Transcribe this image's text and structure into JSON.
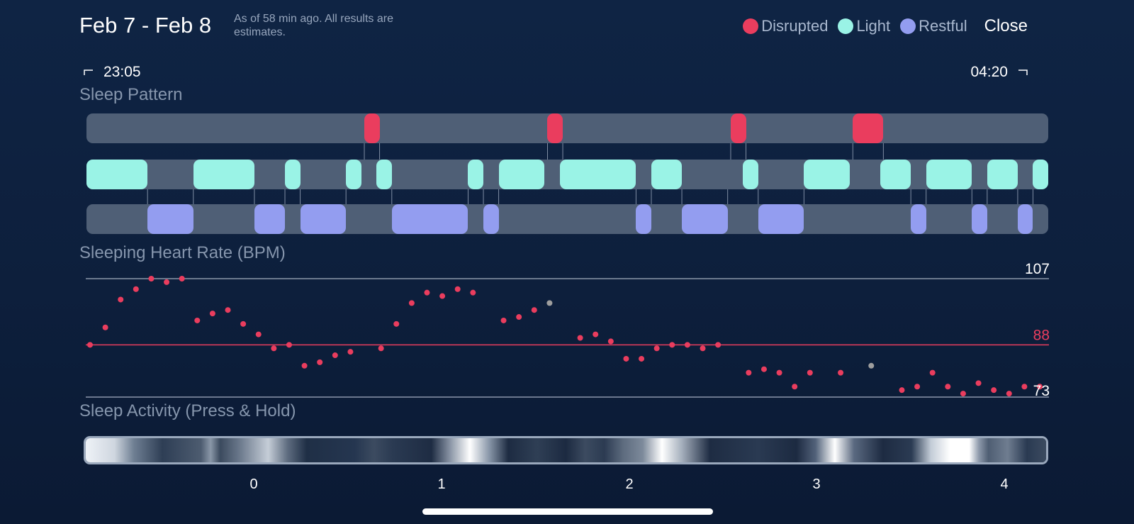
{
  "header": {
    "title": "Feb 7 - Feb 8",
    "subtitle": "As of 58 min ago. All results are estimates.",
    "close_label": "Close"
  },
  "legend": [
    {
      "label": "Disrupted",
      "color": "#ea3d5e"
    },
    {
      "label": "Light",
      "color": "#9af3e6"
    },
    {
      "label": "Restful",
      "color": "#939df0"
    }
  ],
  "time_range": {
    "start": "23:05",
    "end": "04:20"
  },
  "sleep_pattern": {
    "label": "Sleep Pattern",
    "total_minutes": 315,
    "disrupted": [
      [
        91,
        96
      ],
      [
        151,
        156
      ],
      [
        211,
        216
      ],
      [
        251,
        261
      ]
    ],
    "light": [
      [
        0,
        20
      ],
      [
        35,
        55
      ],
      [
        65,
        70
      ],
      [
        85,
        90
      ],
      [
        95,
        100
      ],
      [
        125,
        130
      ],
      [
        135,
        150
      ],
      [
        155,
        180
      ],
      [
        185,
        195
      ],
      [
        215,
        220
      ],
      [
        235,
        250
      ],
      [
        260,
        270
      ],
      [
        275,
        290
      ],
      [
        295,
        305
      ],
      [
        310,
        315
      ]
    ],
    "restful": [
      [
        20,
        35
      ],
      [
        55,
        65
      ],
      [
        70,
        85
      ],
      [
        100,
        125
      ],
      [
        130,
        135
      ],
      [
        180,
        185
      ],
      [
        195,
        210
      ],
      [
        220,
        235
      ],
      [
        270,
        275
      ],
      [
        290,
        295
      ],
      [
        305,
        310
      ]
    ]
  },
  "heart_rate": {
    "label": "Sleeping Heart Rate (BPM)",
    "max": 107,
    "avg": 88,
    "min": 73,
    "red_color": "#ea3d5e",
    "gray_color": "#9e9e9e",
    "points": [
      {
        "t": 0,
        "v": 88
      },
      {
        "t": 5,
        "v": 93
      },
      {
        "t": 10,
        "v": 101
      },
      {
        "t": 15,
        "v": 104
      },
      {
        "t": 20,
        "v": 107
      },
      {
        "t": 25,
        "v": 106
      },
      {
        "t": 30,
        "v": 107
      },
      {
        "t": 35,
        "v": 95
      },
      {
        "t": 40,
        "v": 97
      },
      {
        "t": 45,
        "v": 98
      },
      {
        "t": 50,
        "v": 94
      },
      {
        "t": 55,
        "v": 91
      },
      {
        "t": 60,
        "v": 87
      },
      {
        "t": 65,
        "v": 88
      },
      {
        "t": 70,
        "v": 82
      },
      {
        "t": 75,
        "v": 83
      },
      {
        "t": 80,
        "v": 85
      },
      {
        "t": 85,
        "v": 86
      },
      {
        "t": 95,
        "v": 87
      },
      {
        "t": 100,
        "v": 94
      },
      {
        "t": 105,
        "v": 100
      },
      {
        "t": 110,
        "v": 103
      },
      {
        "t": 115,
        "v": 102
      },
      {
        "t": 120,
        "v": 104
      },
      {
        "t": 125,
        "v": 103
      },
      {
        "t": 135,
        "v": 95
      },
      {
        "t": 140,
        "v": 96
      },
      {
        "t": 145,
        "v": 98
      },
      {
        "t": 150,
        "v": 100,
        "gray": true
      },
      {
        "t": 160,
        "v": 90
      },
      {
        "t": 165,
        "v": 91
      },
      {
        "t": 170,
        "v": 89
      },
      {
        "t": 175,
        "v": 84
      },
      {
        "t": 180,
        "v": 84
      },
      {
        "t": 185,
        "v": 87
      },
      {
        "t": 190,
        "v": 88
      },
      {
        "t": 195,
        "v": 88
      },
      {
        "t": 200,
        "v": 87
      },
      {
        "t": 205,
        "v": 88
      },
      {
        "t": 215,
        "v": 80
      },
      {
        "t": 220,
        "v": 81
      },
      {
        "t": 225,
        "v": 80
      },
      {
        "t": 230,
        "v": 76
      },
      {
        "t": 235,
        "v": 80
      },
      {
        "t": 245,
        "v": 80
      },
      {
        "t": 255,
        "v": 82,
        "gray": true
      },
      {
        "t": 265,
        "v": 75
      },
      {
        "t": 270,
        "v": 76
      },
      {
        "t": 275,
        "v": 80
      },
      {
        "t": 280,
        "v": 76
      },
      {
        "t": 285,
        "v": 74
      },
      {
        "t": 290,
        "v": 77
      },
      {
        "t": 295,
        "v": 75
      },
      {
        "t": 300,
        "v": 74
      },
      {
        "t": 305,
        "v": 76
      },
      {
        "t": 310,
        "v": 76
      }
    ]
  },
  "activity": {
    "label": "Sleep Activity (Press & Hold)",
    "x_ticks": [
      "0",
      "1",
      "2",
      "3",
      "4"
    ]
  }
}
